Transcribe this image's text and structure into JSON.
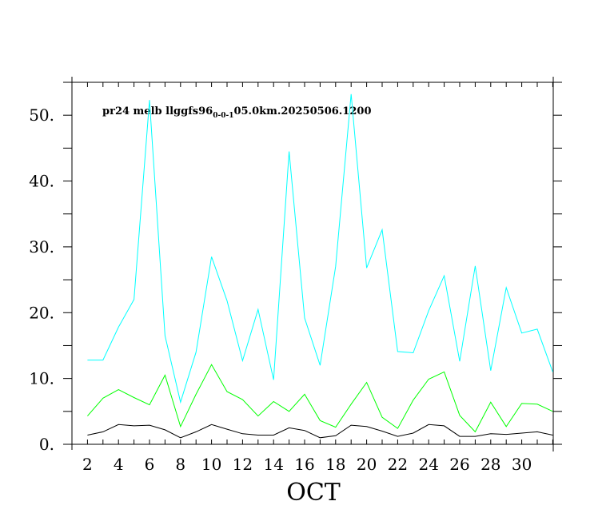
{
  "chart_data": {
    "type": "line",
    "title": "pr24  melb  llggfs96",
    "title_subscript": "0-0-1",
    "title_suffix": "05.0km.20250506.1200",
    "xlabel": "OCT",
    "ylabel": "",
    "xlim": [
      1,
      32
    ],
    "ylim": [
      0,
      55
    ],
    "x_ticks": [
      2,
      4,
      6,
      8,
      10,
      12,
      14,
      16,
      18,
      20,
      22,
      24,
      26,
      28,
      30
    ],
    "y_ticks": [
      0,
      10,
      20,
      30,
      40,
      50
    ],
    "y_tick_labels": [
      "0.",
      "10.",
      "20.",
      "30.",
      "40.",
      "50."
    ],
    "x": [
      2,
      3,
      4,
      5,
      6,
      7,
      8,
      9,
      10,
      11,
      12,
      13,
      14,
      15,
      16,
      17,
      18,
      19,
      20,
      21,
      22,
      23,
      24,
      25,
      26,
      27,
      28,
      29,
      30,
      31,
      32
    ],
    "series": [
      {
        "color": "#00ffff",
        "values": [
          12.8,
          12.8,
          17.8,
          22.0,
          52.3,
          16.5,
          6.4,
          14.0,
          28.5,
          21.8,
          12.7,
          20.5,
          9.8,
          44.5,
          19.2,
          12.0,
          27.0,
          53.2,
          26.8,
          32.6,
          14.1,
          13.9,
          20.3,
          25.6,
          12.6,
          27.1,
          11.2,
          23.8,
          16.9,
          17.5,
          11.0
        ]
      },
      {
        "color": "#00ff00",
        "values": [
          4.3,
          7.0,
          8.3,
          7.1,
          6.0,
          10.5,
          2.7,
          7.6,
          12.1,
          8.0,
          6.8,
          4.3,
          6.5,
          5.0,
          7.6,
          3.6,
          2.6,
          6.1,
          9.4,
          4.1,
          2.4,
          6.7,
          9.9,
          11.0,
          4.4,
          1.9,
          6.4,
          2.7,
          6.2,
          6.1,
          5.0
        ]
      },
      {
        "color": "#000000",
        "values": [
          1.4,
          1.9,
          3.0,
          2.8,
          2.9,
          2.2,
          1.0,
          1.9,
          3.0,
          2.3,
          1.6,
          1.4,
          1.4,
          2.5,
          2.1,
          1.0,
          1.3,
          2.9,
          2.7,
          2.0,
          1.2,
          1.7,
          3.0,
          2.8,
          1.2,
          1.2,
          1.6,
          1.5,
          1.7,
          1.9,
          1.4
        ]
      }
    ],
    "grid": false,
    "legend": "none"
  }
}
